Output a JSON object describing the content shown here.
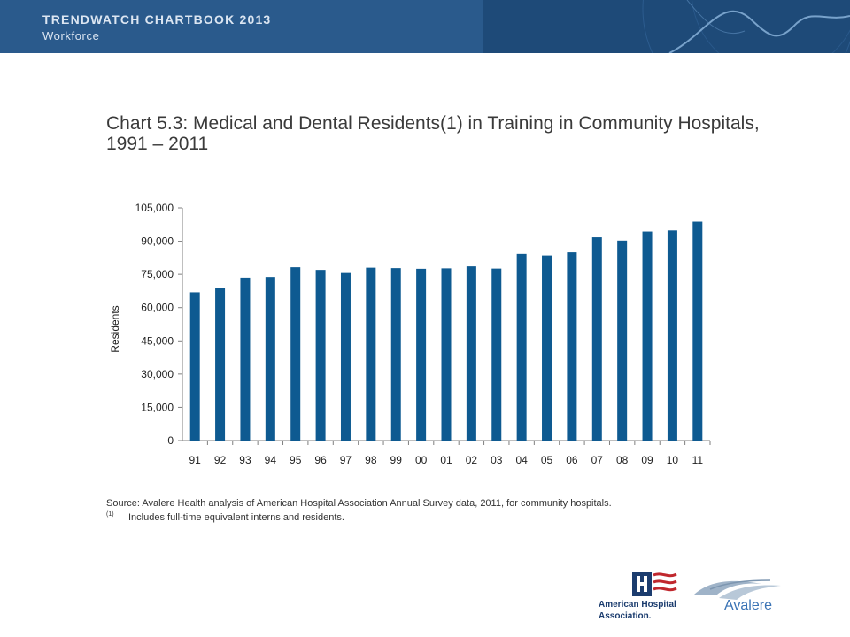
{
  "header": {
    "title": "TRENDWATCH CHARTBOOK 2013",
    "subtitle": "Workforce"
  },
  "chart_title": "Chart 5.3: Medical and Dental Residents(1) in Training in Community Hospitals, 1991 – 2011",
  "chart_data": {
    "type": "bar",
    "categories": [
      "91",
      "92",
      "93",
      "94",
      "95",
      "96",
      "97",
      "98",
      "99",
      "00",
      "01",
      "02",
      "03",
      "04",
      "05",
      "06",
      "07",
      "08",
      "09",
      "10",
      "11"
    ],
    "values": [
      66900,
      68800,
      73500,
      73800,
      78200,
      77000,
      75600,
      78000,
      77800,
      77500,
      77700,
      78600,
      77600,
      84300,
      83600,
      85000,
      91800,
      90300,
      94400,
      94900,
      98800
    ],
    "ylabel": "Residents",
    "xlabel": "",
    "ylim": [
      0,
      105000
    ],
    "yticks": [
      0,
      15000,
      30000,
      45000,
      60000,
      75000,
      90000,
      105000
    ],
    "ytick_labels": [
      "0",
      "15,000",
      "30,000",
      "45,000",
      "60,000",
      "75,000",
      "90,000",
      "105,000"
    ],
    "grid": false,
    "legend": "none",
    "bar_color": "#0e5a91"
  },
  "source": "Source: Avalere Health analysis of American Hospital Association Annual Survey data, 2011, for community hospitals.",
  "footnote": {
    "mark": "(1)",
    "text": "Includes full-time equivalent interns and residents."
  },
  "logos": {
    "aha_lines": [
      "American Hospital",
      "Association."
    ],
    "avalere": "Avalere"
  }
}
